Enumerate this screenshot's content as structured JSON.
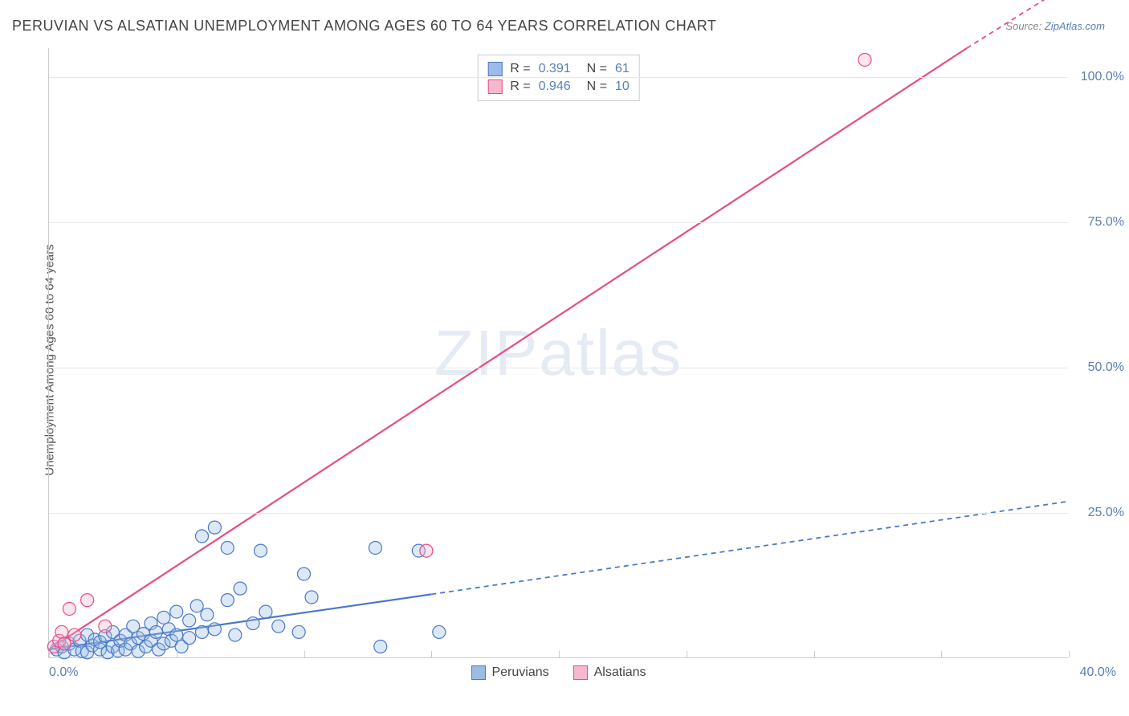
{
  "title": "PERUVIAN VS ALSATIAN UNEMPLOYMENT AMONG AGES 60 TO 64 YEARS CORRELATION CHART",
  "source_label": "Source:",
  "source_name": "ZipAtlas.com",
  "y_axis_label": "Unemployment Among Ages 60 to 64 years",
  "watermark": {
    "a": "ZIP",
    "b": "atlas"
  },
  "chart": {
    "type": "scatter",
    "xlim": [
      0,
      40
    ],
    "ylim": [
      0,
      105
    ],
    "x_min_label": "0.0%",
    "x_max_label": "40.0%",
    "x_ticks": [
      0,
      5,
      10,
      15,
      20,
      25,
      30,
      35,
      40
    ],
    "y_ticks": [
      {
        "val": 25,
        "label": "25.0%"
      },
      {
        "val": 50,
        "label": "50.0%"
      },
      {
        "val": 75,
        "label": "75.0%"
      },
      {
        "val": 100,
        "label": "100.0%"
      }
    ],
    "background_color": "#ffffff",
    "grid_color": "#e8e8e8",
    "series": [
      {
        "name": "Peruvians",
        "fill": "#9bbce6",
        "stroke": "#4a79c7",
        "marker_r": 8,
        "R": "0.391",
        "N": "61",
        "trend": {
          "x1": 0,
          "y1": 1.5,
          "x2": 15,
          "y2": 11,
          "dash_x2": 40,
          "dash_y2": 27
        },
        "points": [
          [
            0.3,
            1.5
          ],
          [
            0.5,
            2.0
          ],
          [
            0.6,
            1.0
          ],
          [
            0.8,
            2.5
          ],
          [
            1.0,
            1.5
          ],
          [
            1.2,
            3.0
          ],
          [
            1.3,
            1.2
          ],
          [
            1.5,
            4.0
          ],
          [
            1.5,
            1.0
          ],
          [
            1.7,
            2.2
          ],
          [
            1.8,
            3.2
          ],
          [
            2.0,
            1.5
          ],
          [
            2.0,
            2.8
          ],
          [
            2.2,
            3.8
          ],
          [
            2.3,
            1.0
          ],
          [
            2.5,
            4.5
          ],
          [
            2.5,
            2.0
          ],
          [
            2.7,
            1.3
          ],
          [
            2.8,
            3.0
          ],
          [
            3.0,
            4.0
          ],
          [
            3.0,
            1.5
          ],
          [
            3.2,
            2.5
          ],
          [
            3.3,
            5.5
          ],
          [
            3.5,
            3.5
          ],
          [
            3.5,
            1.2
          ],
          [
            3.7,
            4.2
          ],
          [
            3.8,
            2.0
          ],
          [
            4.0,
            6.0
          ],
          [
            4.0,
            3.0
          ],
          [
            4.2,
            4.5
          ],
          [
            4.3,
            1.5
          ],
          [
            4.5,
            7.0
          ],
          [
            4.5,
            2.5
          ],
          [
            4.7,
            5.0
          ],
          [
            4.8,
            3.0
          ],
          [
            5.0,
            8.0
          ],
          [
            5.0,
            4.0
          ],
          [
            5.2,
            2.0
          ],
          [
            5.5,
            6.5
          ],
          [
            5.5,
            3.5
          ],
          [
            5.8,
            9.0
          ],
          [
            6.0,
            4.5
          ],
          [
            6.0,
            21.0
          ],
          [
            6.2,
            7.5
          ],
          [
            6.5,
            22.5
          ],
          [
            6.5,
            5.0
          ],
          [
            7.0,
            10.0
          ],
          [
            7.0,
            19.0
          ],
          [
            7.3,
            4.0
          ],
          [
            7.5,
            12.0
          ],
          [
            8.0,
            6.0
          ],
          [
            8.3,
            18.5
          ],
          [
            8.5,
            8.0
          ],
          [
            9.0,
            5.5
          ],
          [
            9.8,
            4.5
          ],
          [
            10.0,
            14.5
          ],
          [
            10.3,
            10.5
          ],
          [
            12.8,
            19.0
          ],
          [
            13.0,
            2.0
          ],
          [
            14.5,
            18.5
          ],
          [
            15.3,
            4.5
          ]
        ]
      },
      {
        "name": "Alsatians",
        "fill": "#f5b8cf",
        "stroke": "#e94b87",
        "marker_r": 8,
        "R": "0.946",
        "N": "10",
        "trend": {
          "x1": 0,
          "y1": 1.5,
          "x2": 36,
          "y2": 105,
          "dash_x2": 40,
          "dash_y2": 116
        },
        "points": [
          [
            0.2,
            2.0
          ],
          [
            0.4,
            3.0
          ],
          [
            0.5,
            4.5
          ],
          [
            0.6,
            2.5
          ],
          [
            0.8,
            8.5
          ],
          [
            1.0,
            4.0
          ],
          [
            1.5,
            10.0
          ],
          [
            2.2,
            5.5
          ],
          [
            14.8,
            18.5
          ],
          [
            32.0,
            103.0
          ]
        ]
      }
    ],
    "legend_bottom": [
      {
        "label": "Peruvians",
        "fill": "#9bbce6",
        "stroke": "#4a79c7"
      },
      {
        "label": "Alsatians",
        "fill": "#f5b8cf",
        "stroke": "#e94b87"
      }
    ]
  }
}
